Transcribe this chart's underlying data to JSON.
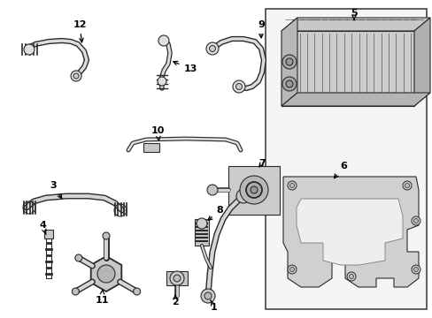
{
  "bg_color": "#ffffff",
  "line_color": "#2a2a2a",
  "box_fill": "#efefef",
  "box_edge": "#555555",
  "part_fill": "#d8d8d8",
  "part_fill2": "#c0c0c0",
  "label_fs": 8,
  "figsize": [
    4.89,
    3.6
  ],
  "dpi": 100
}
